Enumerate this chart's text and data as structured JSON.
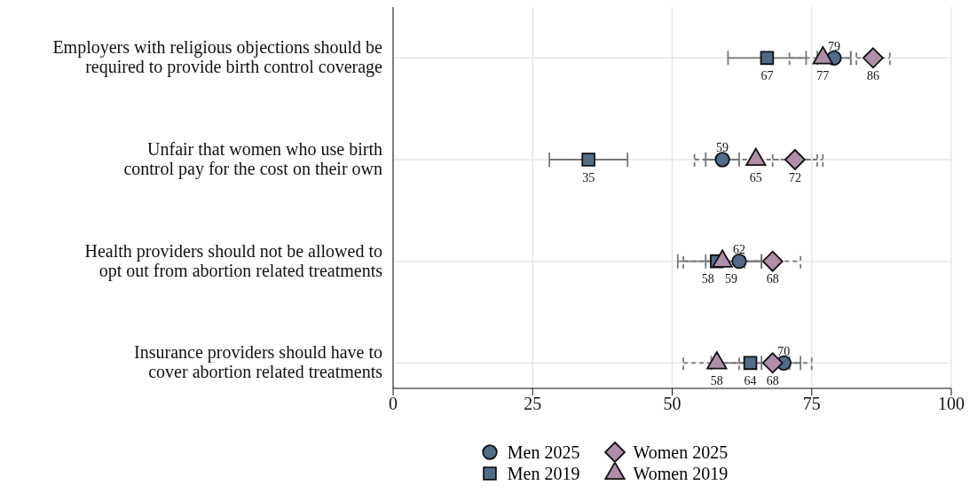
{
  "chart_data": {
    "type": "scatter",
    "orientation": "horizontal",
    "categories": [
      "Employers with religious objections should be required to provide birth control coverage",
      "Unfair that women who use birth control pay for the cost on their own",
      "Health providers should not be allowed to opt out from abortion related treatments",
      "Insurance providers should have to cover abortion related treatments"
    ],
    "series": [
      {
        "name": "Men 2025",
        "color": "#4f6d8a",
        "marker": "circle",
        "line_style": "solid",
        "values": [
          79,
          59,
          62,
          70
        ],
        "errors": [
          [
            76,
            82
          ],
          [
            56,
            62
          ],
          [
            56,
            66
          ],
          [
            66,
            73
          ]
        ]
      },
      {
        "name": "Men 2019",
        "color": "#4f6d8a",
        "marker": "square",
        "line_style": "solid",
        "values": [
          67,
          35,
          58,
          64
        ],
        "errors": [
          [
            60,
            74
          ],
          [
            28,
            42
          ],
          [
            51,
            66
          ],
          [
            57,
            71
          ]
        ]
      },
      {
        "name": "Women 2025",
        "color": "#b08ea8",
        "marker": "diamond",
        "line_style": "dashed",
        "values": [
          86,
          72,
          68,
          68
        ],
        "errors": [
          [
            83,
            89
          ],
          [
            68,
            77
          ],
          [
            63,
            73
          ],
          [
            62,
            75
          ]
        ]
      },
      {
        "name": "Women 2019",
        "color": "#b08ea8",
        "marker": "triangle",
        "line_style": "dashed",
        "values": [
          77,
          65,
          59,
          58
        ],
        "errors": [
          [
            71,
            82
          ],
          [
            54,
            76
          ],
          [
            52,
            66
          ],
          [
            52,
            65
          ]
        ]
      }
    ],
    "xlim": [
      0,
      100
    ],
    "xticks": [
      0,
      25,
      50,
      75,
      100
    ],
    "grid": true,
    "legend": "bottom",
    "data_labels": true
  }
}
